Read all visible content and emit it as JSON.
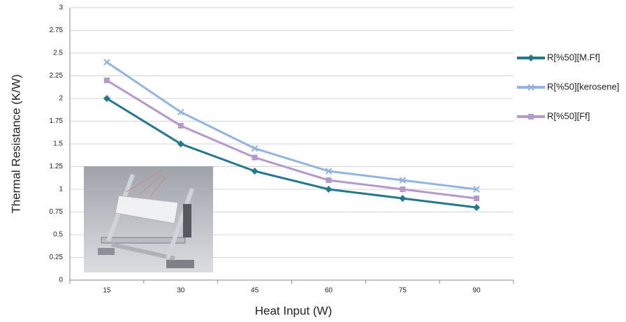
{
  "chart_data": {
    "type": "line",
    "x_label": "Heat Input (W)",
    "y_label": "Thermal Resistance (K/W)",
    "categories": [
      "15",
      "30",
      "45",
      "60",
      "75",
      "90"
    ],
    "series": [
      {
        "name": "R[%50][M.Ff]",
        "color": "#24788c",
        "values": [
          2,
          1.5,
          1.2,
          1,
          0.9,
          0.8
        ]
      },
      {
        "name": "R[%50][kerosene]",
        "color": "#93b5dd",
        "values": [
          2.4,
          1.85,
          1.45,
          1.2,
          1.1,
          1
        ]
      },
      {
        "name": "R[%50][Ff]",
        "color": "#b49ac8",
        "values": [
          2.2,
          1.7,
          1.35,
          1.1,
          1,
          0.9
        ]
      }
    ],
    "ylim": [
      0,
      3
    ],
    "yticks": [
      0,
      0.25,
      0.5,
      0.75,
      1,
      1.25,
      1.5,
      1.75,
      2,
      2.25,
      2.5,
      2.75,
      3
    ],
    "grid": true,
    "legend": "right"
  }
}
